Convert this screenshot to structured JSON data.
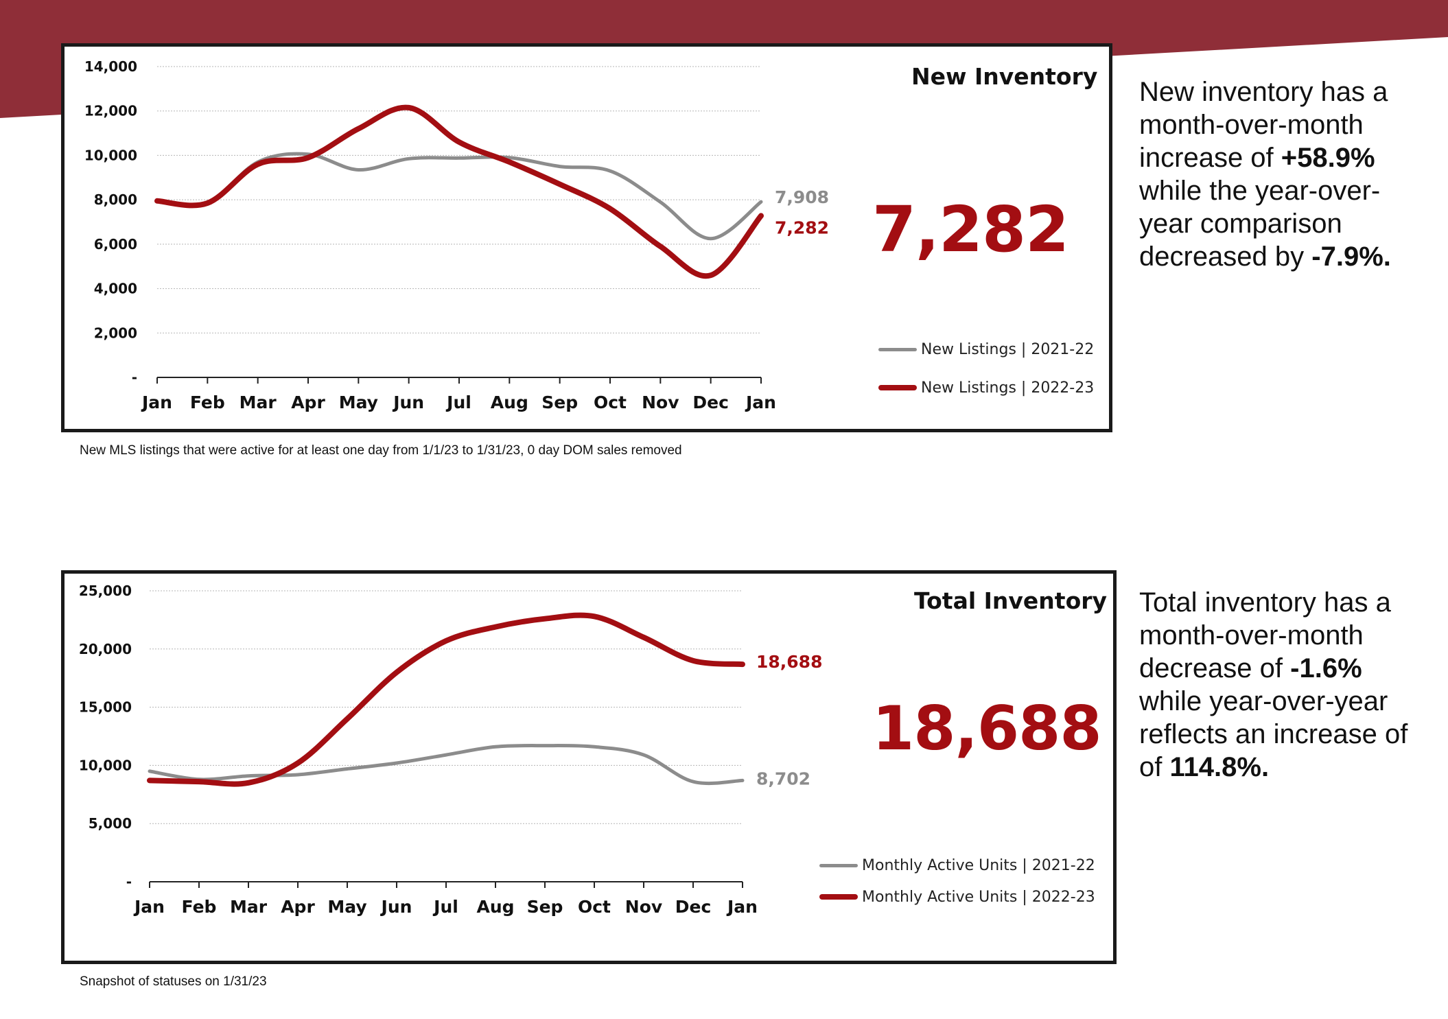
{
  "colors": {
    "brand": "#8f2e38",
    "current_series": "#a30e12",
    "prior_series": "#8c8c8c",
    "frame": "#1a1a1a"
  },
  "new_inventory": {
    "title": "New Inventory",
    "big_number": "7,282",
    "caption": "New MLS listings that were active for at least one day from 1/1/23 to 1/31/23, 0 day DOM sales removed",
    "summary": {
      "line1": "New inventory has a month-over-month increase of ",
      "mom": "+58.9%",
      "line2": " while the year-over-year comparison decreased by ",
      "yoy": "-7.9%."
    }
  },
  "total_inventory": {
    "title": "Total Inventory",
    "big_number": "18,688",
    "caption": "Snapshot of statuses on 1/31/23",
    "summary": {
      "line1": "Total inventory has a month-over-month decrease of ",
      "mom": "-1.6%",
      "line2": " while year-over-year reflects an increase of of ",
      "yoy": "114.8%."
    }
  },
  "chart_data": [
    {
      "type": "line",
      "title": "New Inventory",
      "categories": [
        "Jan",
        "Feb",
        "Mar",
        "Apr",
        "May",
        "Jun",
        "Jul",
        "Aug",
        "Sep",
        "Oct",
        "Nov",
        "Dec",
        "Jan"
      ],
      "ylim": [
        0,
        14000
      ],
      "yticks": [
        0,
        2000,
        4000,
        6000,
        8000,
        10000,
        12000,
        14000
      ],
      "ytick_labels": [
        "-",
        "2,000",
        "4,000",
        "6,000",
        "8,000",
        "10,000",
        "12,000",
        "14,000"
      ],
      "series": [
        {
          "name": "New Listings | 2021-22",
          "color": "#8c8c8c",
          "values": [
            7950,
            7850,
            9700,
            10050,
            9350,
            9850,
            9880,
            9900,
            9500,
            9300,
            7900,
            6250,
            7908
          ],
          "end_label": "7,908"
        },
        {
          "name": "New Listings | 2022-23",
          "color": "#a30e12",
          "values": [
            7950,
            7850,
            9600,
            9900,
            11200,
            12150,
            10600,
            9700,
            8700,
            7600,
            5900,
            4600,
            7282
          ],
          "end_label": "7,282"
        }
      ],
      "legend_position": "bottom-right"
    },
    {
      "type": "line",
      "title": "Total Inventory",
      "categories": [
        "Jan",
        "Feb",
        "Mar",
        "Apr",
        "May",
        "Jun",
        "Jul",
        "Aug",
        "Sep",
        "Oct",
        "Nov",
        "Dec",
        "Jan"
      ],
      "ylim": [
        0,
        25000
      ],
      "yticks": [
        0,
        5000,
        10000,
        15000,
        20000,
        25000
      ],
      "ytick_labels": [
        "-",
        "5,000",
        "10,000",
        "15,000",
        "20,000",
        "25,000"
      ],
      "series": [
        {
          "name": "Monthly Active Units | 2021-22",
          "color": "#8c8c8c",
          "values": [
            9500,
            8800,
            9100,
            9200,
            9700,
            10200,
            10900,
            11600,
            11700,
            11600,
            10900,
            8600,
            8702
          ],
          "end_label": "8,702"
        },
        {
          "name": "Monthly Active Units | 2022-23",
          "color": "#a30e12",
          "values": [
            8700,
            8600,
            8500,
            10200,
            14000,
            18000,
            20700,
            21900,
            22600,
            22800,
            21000,
            19000,
            18688
          ],
          "end_label": "18,688"
        }
      ],
      "legend_position": "bottom-right"
    }
  ]
}
